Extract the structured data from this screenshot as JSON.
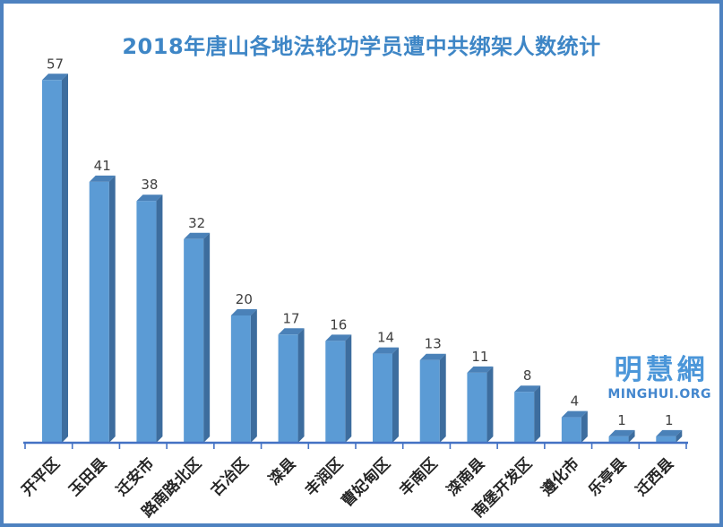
{
  "chart_data": {
    "type": "bar",
    "title": "2018年唐山各地法轮功学员遭中共绑架人数统计",
    "categories": [
      "开平区",
      "玉田县",
      "迁安市",
      "路南路北区",
      "古冶区",
      "滦县",
      "丰润区",
      "曹妃甸区",
      "丰南区",
      "滦南县",
      "南堡开发区",
      "遵化市",
      "乐亭县",
      "迁西县"
    ],
    "values": [
      57,
      41,
      38,
      32,
      20,
      17,
      16,
      14,
      13,
      11,
      8,
      4,
      1,
      1
    ],
    "xlabel": "",
    "ylabel": "",
    "ylim": [
      0,
      60
    ],
    "grid": false,
    "legend": false,
    "style": "3d-extruded-bars",
    "value_labels_shown": true,
    "category_label_rotation_deg": -45,
    "colors": {
      "bar_front": "#5b9bd5",
      "bar_side": "#3d6d9e",
      "bar_top": "#4a81b8",
      "axis": "#4472c4",
      "title": "#3e86c6",
      "value_label": "#404040",
      "category_label": "#262626",
      "frame_border": "#4e82c0",
      "background": "#ffffff"
    }
  },
  "logo": {
    "chinese": "明慧網",
    "english": "MINGHUI.ORG"
  }
}
